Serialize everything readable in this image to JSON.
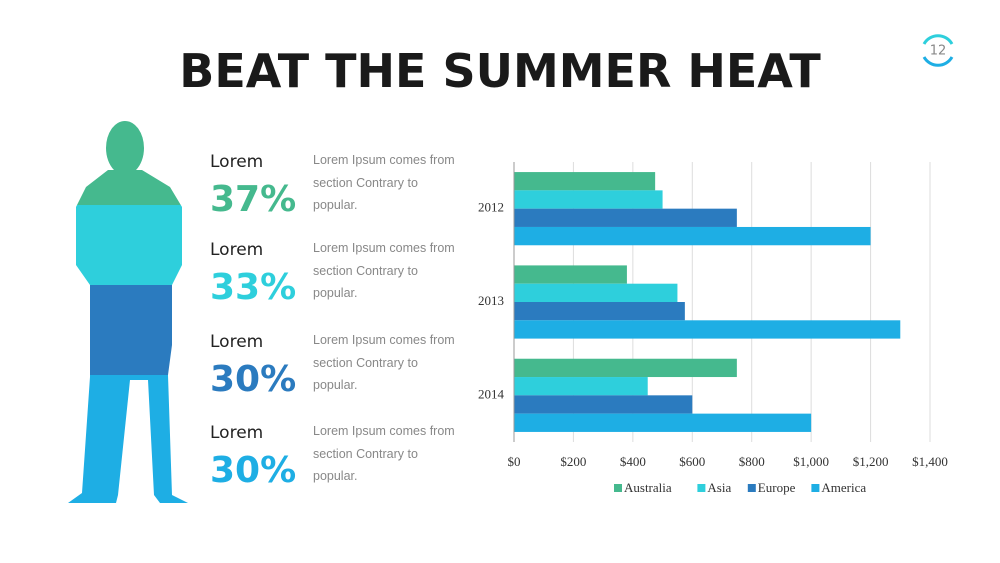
{
  "header": {
    "title": "BEAT THE SUMMER HEAT",
    "page_number": "12"
  },
  "stats": [
    {
      "label": "Lorem",
      "value": "37%",
      "color": "#45b98e",
      "text": "Lorem Ipsum comes from section Contrary to popular."
    },
    {
      "label": "Lorem",
      "value": "33%",
      "color": "#2ecfdc",
      "text": "Lorem Ipsum comes from section Contrary to popular."
    },
    {
      "label": "Lorem",
      "value": "30%",
      "color": "#2b7bbf",
      "text": "Lorem Ipsum comes from section Contrary to popular."
    },
    {
      "label": "Lorem",
      "value": "30%",
      "color": "#1eaee4",
      "text": "Lorem Ipsum comes from section Contrary to popular."
    }
  ],
  "chart_data": {
    "type": "hbar",
    "categories": [
      "2012",
      "2013",
      "2014"
    ],
    "series": [
      {
        "name": "Australia",
        "color": "#45b98e",
        "values": [
          475,
          380,
          750
        ]
      },
      {
        "name": "Asia",
        "color": "#2ecfdc",
        "values": [
          500,
          550,
          450
        ]
      },
      {
        "name": "Europe",
        "color": "#2b7bbf",
        "values": [
          750,
          575,
          600
        ]
      },
      {
        "name": "America",
        "color": "#1eaee4",
        "values": [
          1200,
          1300,
          1000
        ]
      }
    ],
    "xlim": [
      0,
      1400
    ],
    "xticks": [
      {
        "value": 0,
        "label": "$0"
      },
      {
        "value": 200,
        "label": "$200"
      },
      {
        "value": 400,
        "label": "$400"
      },
      {
        "value": 600,
        "label": "$600"
      },
      {
        "value": 800,
        "label": "$800"
      },
      {
        "value": 1000,
        "label": "$1,000"
      },
      {
        "value": 1200,
        "label": "$1,200"
      },
      {
        "value": 1400,
        "label": "$1,400"
      }
    ],
    "grid": true,
    "legend": "bottom"
  }
}
